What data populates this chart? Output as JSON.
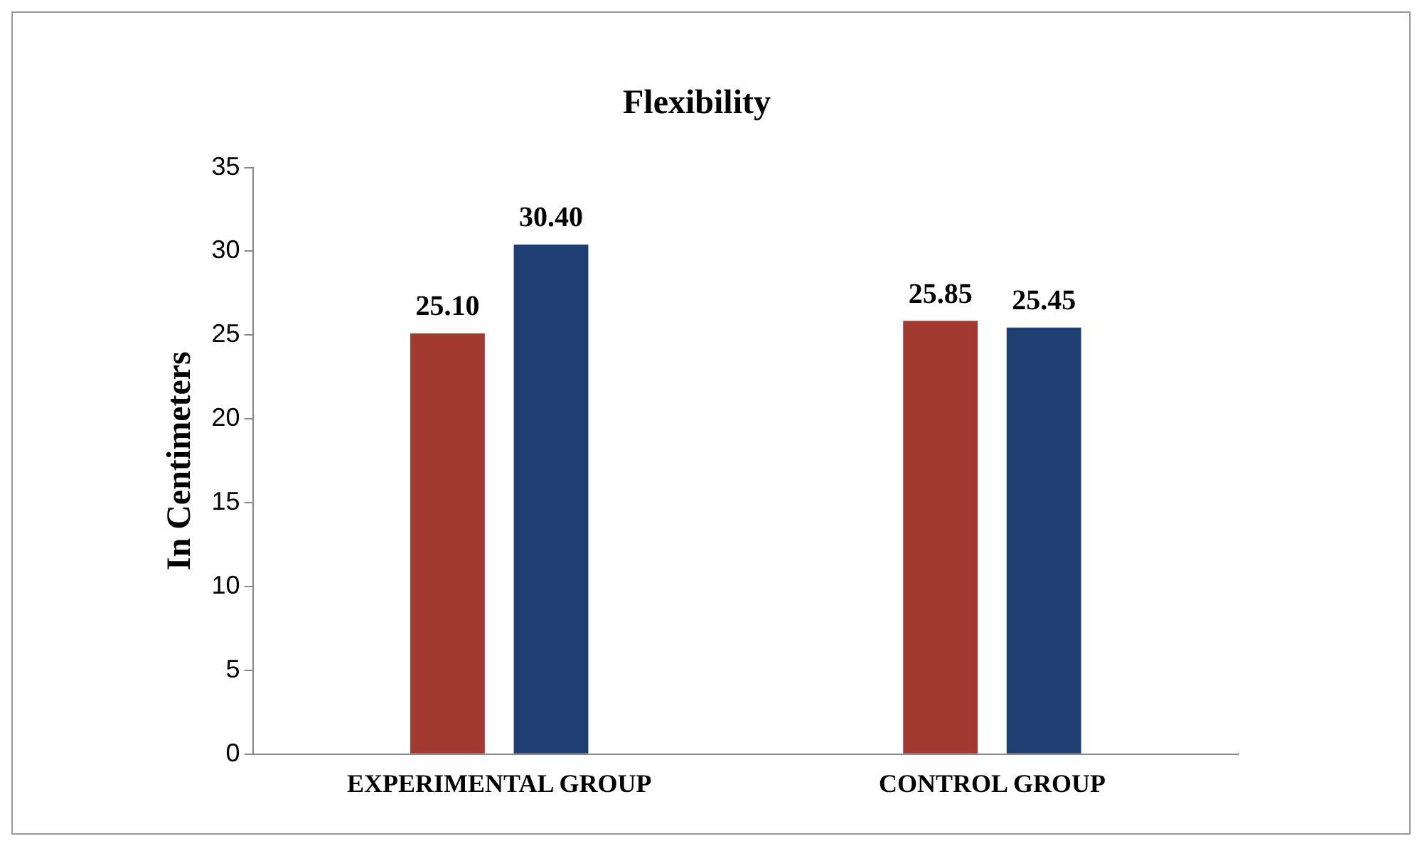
{
  "chart_data": {
    "type": "bar",
    "title": "Flexibility",
    "ylabel": "In Centimeters",
    "categories": [
      "EXPERIMENTAL GROUP",
      "CONTROL GROUP"
    ],
    "series": [
      {
        "color": "#a23a32",
        "values": [
          25.1,
          25.85
        ],
        "value_labels": [
          "25.10",
          "25.85"
        ]
      },
      {
        "color": "#1f3f73",
        "values": [
          30.4,
          25.45
        ],
        "value_labels": [
          "30.40",
          "25.45"
        ]
      }
    ],
    "ylim": [
      0,
      35
    ],
    "yticks": [
      0,
      5,
      10,
      15,
      20,
      25,
      30,
      35
    ],
    "grid": false,
    "legend": false
  }
}
